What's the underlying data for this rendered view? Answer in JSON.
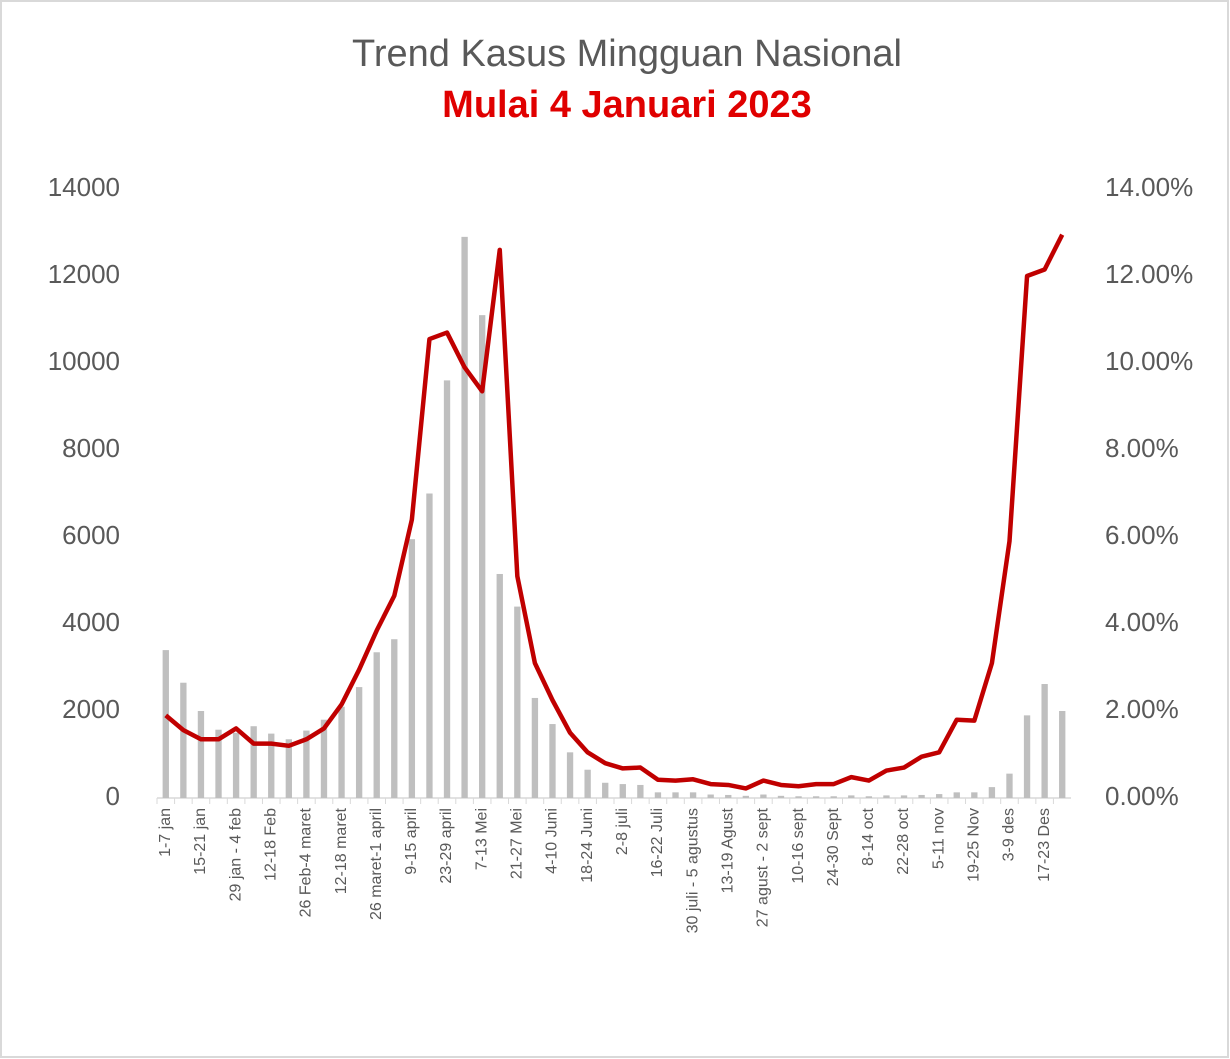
{
  "chart_data": {
    "type": "bar-line",
    "title": "Trend Kasus Mingguan Nasional",
    "subtitle": "Mulai 4 Januari 2023",
    "categories": [
      "1-7 jan",
      null,
      "15-21 jan",
      null,
      "29 jan - 4 feb",
      null,
      "12-18 Feb",
      null,
      "26 Feb-4 maret",
      null,
      "12-18 maret",
      null,
      "26 maret-1 april",
      null,
      "9-15 april",
      null,
      "23-29 april",
      null,
      "7-13 Mei",
      null,
      "21-27 Mei",
      null,
      "4-10 Juni",
      null,
      "18-24 Juni",
      null,
      "2-8 juli",
      null,
      "16-22 Juli",
      null,
      "30 juli - 5 agustus",
      null,
      "13-19 Agust",
      null,
      "27 agust - 2 sept",
      null,
      "10-16 sept",
      null,
      "24-30 Sept",
      null,
      "8-14 oct",
      null,
      "22-28 oct",
      null,
      "5-11 nov",
      null,
      "19-25 Nov",
      null,
      "3-9 des",
      null,
      "17-23 Des",
      null
    ],
    "series": [
      {
        "type": "bar",
        "color": "#bfbfbf",
        "values": [
          3400,
          2650,
          2000,
          1570,
          1500,
          1650,
          1480,
          1350,
          1550,
          1800,
          2100,
          2550,
          3350,
          3650,
          5950,
          7000,
          9600,
          12900,
          11100,
          5150,
          4400,
          2300,
          1700,
          1050,
          650,
          350,
          320,
          300,
          130,
          130,
          130,
          80,
          70,
          50,
          80,
          50,
          40,
          40,
          40,
          60,
          40,
          60,
          60,
          70,
          90,
          130,
          130,
          250,
          560,
          1900,
          2620,
          2000
        ]
      },
      {
        "type": "line",
        "axis": "y2",
        "color": "#c00000",
        "values": [
          1.9,
          1.56,
          1.35,
          1.35,
          1.6,
          1.25,
          1.25,
          1.2,
          1.35,
          1.6,
          2.15,
          2.95,
          3.85,
          4.65,
          6.4,
          10.55,
          10.7,
          9.9,
          9.35,
          12.6,
          5.1,
          3.1,
          2.25,
          1.5,
          1.05,
          0.8,
          0.68,
          0.7,
          0.42,
          0.4,
          0.43,
          0.32,
          0.3,
          0.22,
          0.4,
          0.3,
          0.27,
          0.32,
          0.32,
          0.48,
          0.4,
          0.63,
          0.7,
          0.95,
          1.05,
          1.8,
          1.78,
          3.1,
          5.9,
          12.0,
          12.15,
          12.95
        ]
      }
    ],
    "ylim": [
      0,
      14000
    ],
    "yticks": [
      0,
      2000,
      4000,
      6000,
      8000,
      10000,
      12000,
      14000
    ],
    "y2lim": [
      0,
      14
    ],
    "y2ticks": [
      {
        "value": 0,
        "label": "0.00%"
      },
      {
        "value": 2,
        "label": "2.00%"
      },
      {
        "value": 4,
        "label": "4.00%"
      },
      {
        "value": 6,
        "label": "6.00%"
      },
      {
        "value": 8,
        "label": "8.00%"
      },
      {
        "value": 10,
        "label": "10.00%"
      },
      {
        "value": 12,
        "label": "12.00%"
      },
      {
        "value": 14,
        "label": "14.00%"
      }
    ]
  }
}
